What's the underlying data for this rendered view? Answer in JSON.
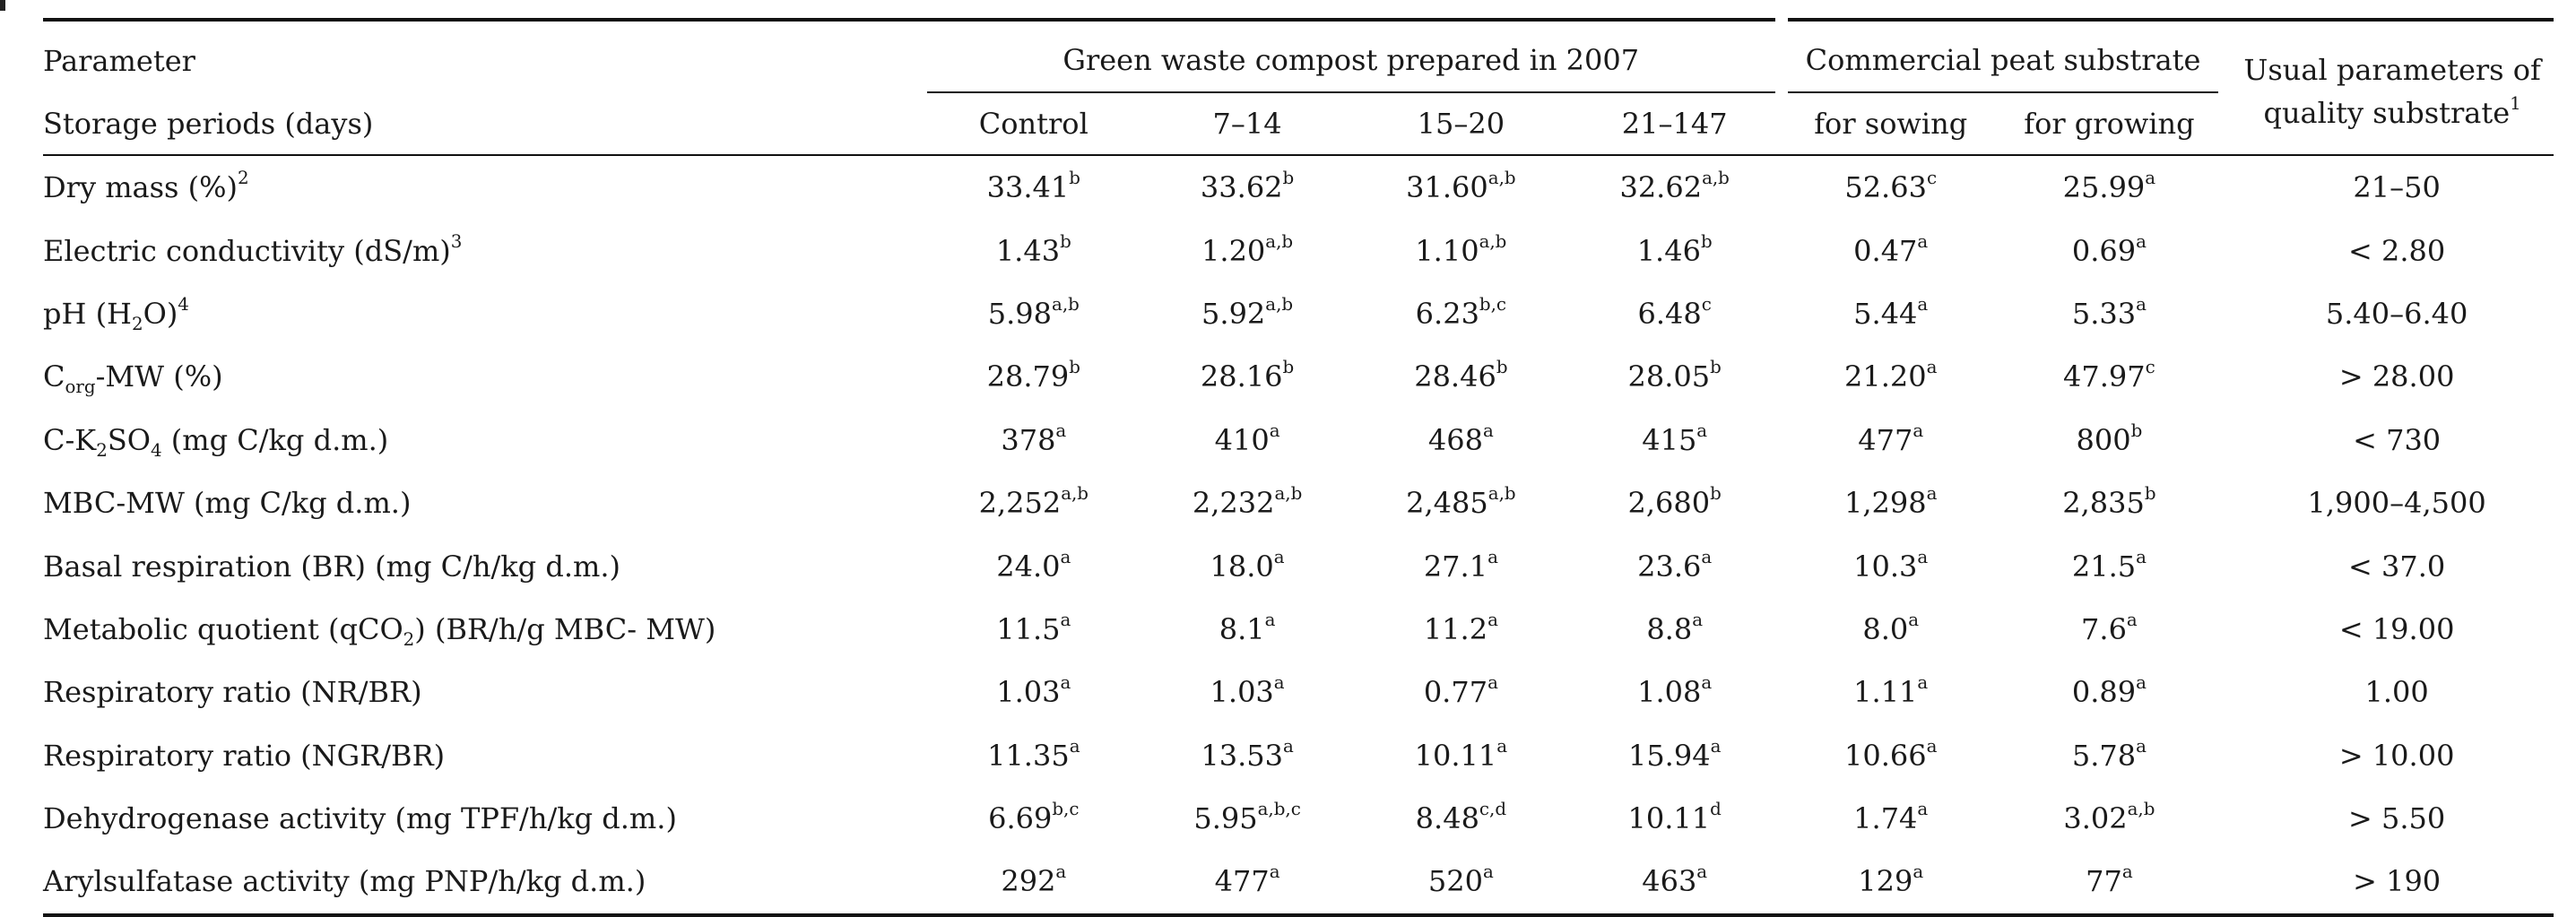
{
  "header": {
    "param_label": "Parameter",
    "storage_label": "Storage periods (days)",
    "group_compost": "Green waste compost prepared in 2007",
    "group_peat": "Commercial peat substrate",
    "usual_label": "Usual parameters of quality substrate",
    "usual_sup": "1",
    "cols": [
      "Control",
      "7–14",
      "15–20",
      "21–147",
      "for sowing",
      "for growing"
    ]
  },
  "rows": [
    {
      "param": {
        "pre": "Dry mass (%)",
        "sup": "2"
      },
      "cells": [
        {
          "v": "33.41",
          "s": "b"
        },
        {
          "v": "33.62",
          "s": "b"
        },
        {
          "v": "31.60",
          "s": "a,b"
        },
        {
          "v": "32.62",
          "s": "a,b"
        },
        {
          "v": "52.63",
          "s": "c"
        },
        {
          "v": "25.99",
          "s": "a"
        }
      ],
      "usual": "21–50"
    },
    {
      "param": {
        "pre": "Electric conductivity (dS/m)",
        "sup": "3"
      },
      "cells": [
        {
          "v": "1.43",
          "s": "b"
        },
        {
          "v": "1.20",
          "s": "a,b"
        },
        {
          "v": "1.10",
          "s": "a,b"
        },
        {
          "v": "1.46",
          "s": "b"
        },
        {
          "v": "0.47",
          "s": "a"
        },
        {
          "v": "0.69",
          "s": "a"
        }
      ],
      "usual": "< 2.80"
    },
    {
      "param": {
        "pre": "pH (H",
        "sub": "2",
        "post": "O)",
        "sup": "4"
      },
      "cells": [
        {
          "v": "5.98",
          "s": "a,b"
        },
        {
          "v": "5.92",
          "s": "a,b"
        },
        {
          "v": "6.23",
          "s": "b,c"
        },
        {
          "v": "6.48",
          "s": "c"
        },
        {
          "v": "5.44",
          "s": "a"
        },
        {
          "v": "5.33",
          "s": "a"
        }
      ],
      "usual": "5.40–6.40"
    },
    {
      "param": {
        "pre": "C",
        "sub": "org",
        "post": "-MW (%)"
      },
      "cells": [
        {
          "v": "28.79",
          "s": "b"
        },
        {
          "v": "28.16",
          "s": "b"
        },
        {
          "v": "28.46",
          "s": "b"
        },
        {
          "v": "28.05",
          "s": "b"
        },
        {
          "v": "21.20",
          "s": "a"
        },
        {
          "v": "47.97",
          "s": "c"
        }
      ],
      "usual": "> 28.00"
    },
    {
      "param": {
        "pre": "C-K",
        "sub": "2",
        "post": "SO",
        "sub2": "4",
        "post2": " (mg C/kg d.m.)"
      },
      "cells": [
        {
          "v": "378",
          "s": "a"
        },
        {
          "v": "410",
          "s": "a"
        },
        {
          "v": "468",
          "s": "a"
        },
        {
          "v": "415",
          "s": "a"
        },
        {
          "v": "477",
          "s": "a"
        },
        {
          "v": "800",
          "s": "b"
        }
      ],
      "usual": "< 730"
    },
    {
      "param": {
        "pre": "MBC-MW (mg C/kg d.m.)"
      },
      "cells": [
        {
          "v": "2,252",
          "s": "a,b"
        },
        {
          "v": "2,232",
          "s": "a,b"
        },
        {
          "v": "2,485",
          "s": "a,b"
        },
        {
          "v": "2,680",
          "s": "b"
        },
        {
          "v": "1,298",
          "s": "a"
        },
        {
          "v": "2,835",
          "s": "b"
        }
      ],
      "usual": "1,900–4,500"
    },
    {
      "param": {
        "pre": "Basal respiration (BR) (mg C/h/kg d.m.)"
      },
      "cells": [
        {
          "v": "24.0",
          "s": "a"
        },
        {
          "v": "18.0",
          "s": "a"
        },
        {
          "v": "27.1",
          "s": "a"
        },
        {
          "v": "23.6",
          "s": "a"
        },
        {
          "v": "10.3",
          "s": "a"
        },
        {
          "v": "21.5",
          "s": "a"
        }
      ],
      "usual": "< 37.0"
    },
    {
      "param": {
        "pre": "Metabolic quotient (qCO",
        "sub": "2",
        "post": ") (BR/h/g MBC- MW)"
      },
      "cells": [
        {
          "v": "11.5",
          "s": "a"
        },
        {
          "v": "8.1",
          "s": "a"
        },
        {
          "v": "11.2",
          "s": "a"
        },
        {
          "v": "8.8",
          "s": "a"
        },
        {
          "v": "8.0",
          "s": "a"
        },
        {
          "v": "7.6",
          "s": "a"
        }
      ],
      "usual": "< 19.00"
    },
    {
      "param": {
        "pre": "Respiratory ratio (NR/BR)"
      },
      "cells": [
        {
          "v": "1.03",
          "s": "a"
        },
        {
          "v": "1.03",
          "s": "a"
        },
        {
          "v": "0.77",
          "s": "a"
        },
        {
          "v": "1.08",
          "s": "a"
        },
        {
          "v": "1.11",
          "s": "a"
        },
        {
          "v": "0.89",
          "s": "a"
        }
      ],
      "usual": "1.00"
    },
    {
      "param": {
        "pre": "Respiratory ratio (NGR/BR)"
      },
      "cells": [
        {
          "v": "11.35",
          "s": "a"
        },
        {
          "v": "13.53",
          "s": "a"
        },
        {
          "v": "10.11",
          "s": "a"
        },
        {
          "v": "15.94",
          "s": "a"
        },
        {
          "v": "10.66",
          "s": "a"
        },
        {
          "v": "5.78",
          "s": "a"
        }
      ],
      "usual": "> 10.00"
    },
    {
      "param": {
        "pre": "Dehydrogenase activity (mg TPF/h/kg d.m.)"
      },
      "cells": [
        {
          "v": "6.69",
          "s": "b,c"
        },
        {
          "v": "5.95",
          "s": "a,b,c"
        },
        {
          "v": "8.48",
          "s": "c,d"
        },
        {
          "v": "10.11",
          "s": "d"
        },
        {
          "v": "1.74",
          "s": "a"
        },
        {
          "v": "3.02",
          "s": "a,b"
        }
      ],
      "usual": "> 5.50"
    },
    {
      "param": {
        "pre": "Arylsulfatase activity (mg PNP/h/kg d.m.)"
      },
      "cells": [
        {
          "v": "292",
          "s": "a"
        },
        {
          "v": "477",
          "s": "a"
        },
        {
          "v": "520",
          "s": "a"
        },
        {
          "v": "463",
          "s": "a"
        },
        {
          "v": "129",
          "s": "a"
        },
        {
          "v": "77",
          "s": "a"
        }
      ],
      "usual": "> 190"
    }
  ]
}
